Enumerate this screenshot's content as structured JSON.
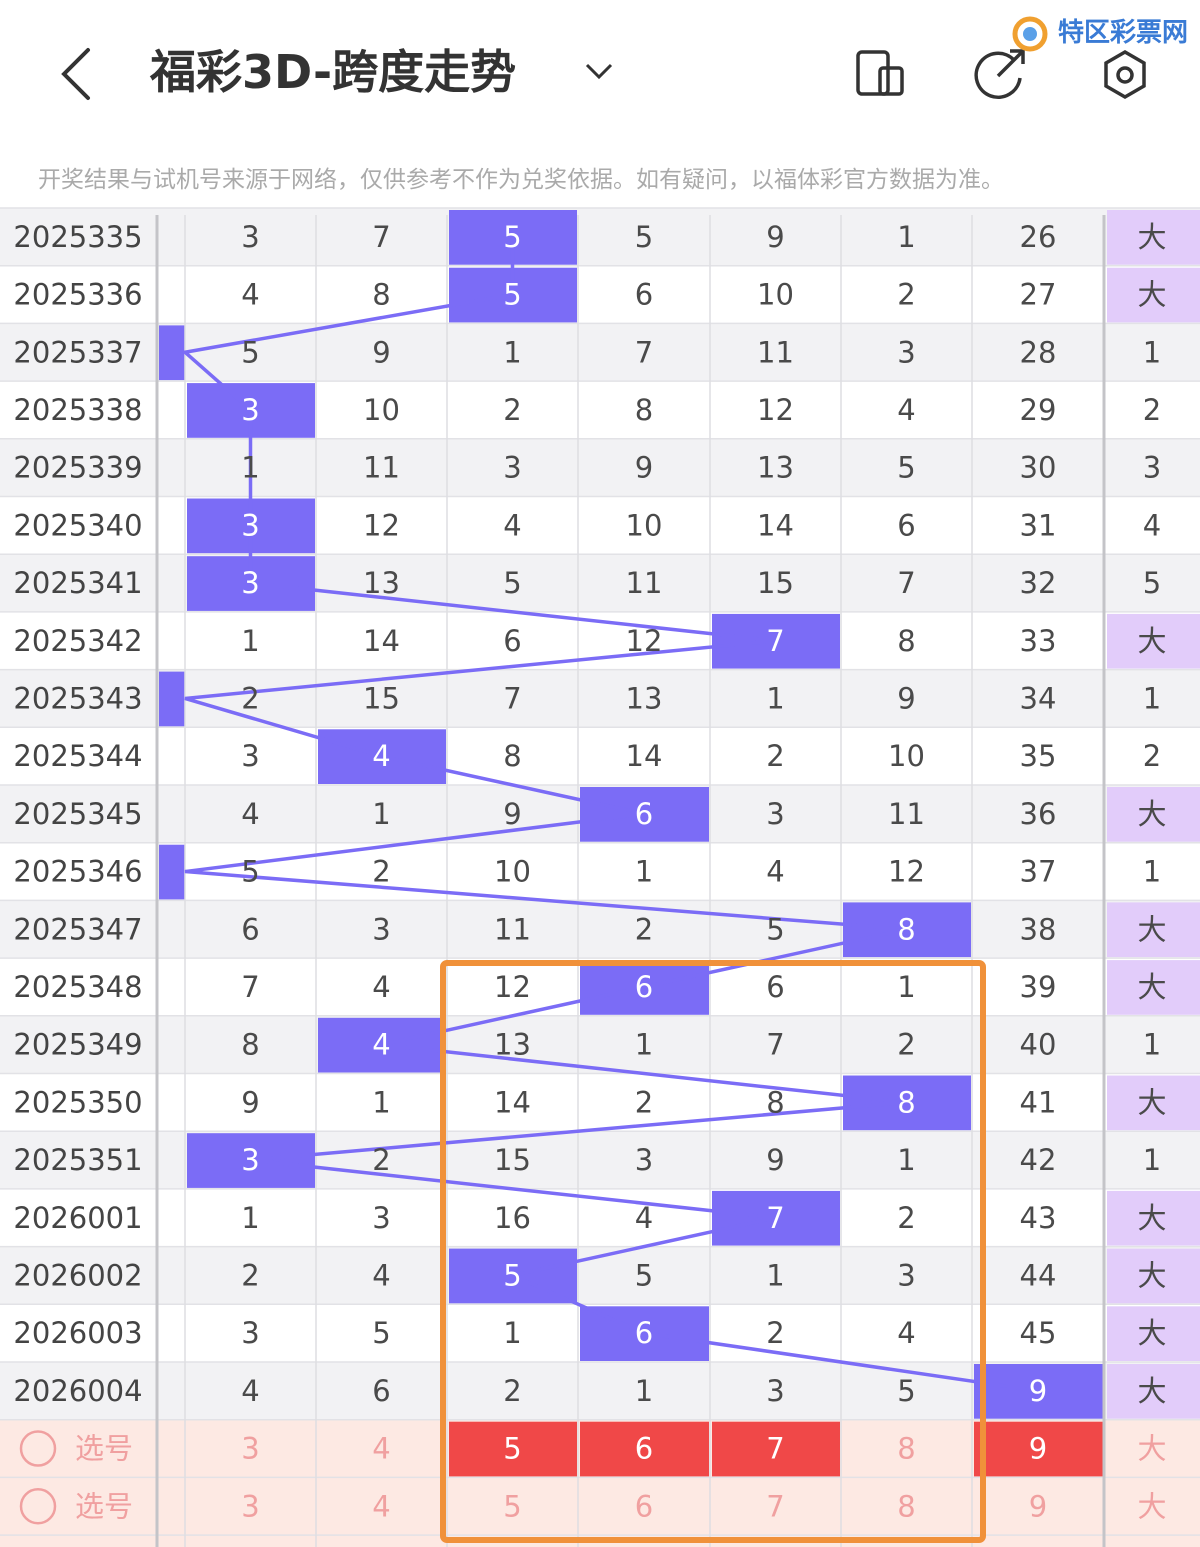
{
  "header": {
    "title": "福彩3D-跨度走势",
    "watermark": "特区彩票网"
  },
  "notice": "开奖结果与试机号来源于网络，仅供参考不作为兑奖依据。如有疑问，以福体彩官方数据为准。",
  "table": {
    "rows": [
      {
        "period": "2025335",
        "hit": 3,
        "cells": [
          3,
          7,
          5,
          5,
          9,
          1,
          26,
          "大"
        ]
      },
      {
        "period": "2025336",
        "hit": 3,
        "cells": [
          4,
          8,
          5,
          6,
          10,
          2,
          27,
          "大"
        ]
      },
      {
        "period": "2025337",
        "hit": 0,
        "cells": [
          5,
          9,
          1,
          7,
          11,
          3,
          28,
          1
        ]
      },
      {
        "period": "2025338",
        "hit": 1,
        "cells": [
          3,
          10,
          2,
          8,
          12,
          4,
          29,
          2
        ]
      },
      {
        "period": "2025339",
        "hit": null,
        "cells": [
          1,
          11,
          3,
          9,
          13,
          5,
          30,
          3
        ]
      },
      {
        "period": "2025340",
        "hit": 1,
        "cells": [
          3,
          12,
          4,
          10,
          14,
          6,
          31,
          4
        ]
      },
      {
        "period": "2025341",
        "hit": 1,
        "cells": [
          3,
          13,
          5,
          11,
          15,
          7,
          32,
          5
        ]
      },
      {
        "period": "2025342",
        "hit": 5,
        "cells": [
          1,
          14,
          6,
          12,
          7,
          8,
          33,
          "大"
        ]
      },
      {
        "period": "2025343",
        "hit": 0,
        "cells": [
          2,
          15,
          7,
          13,
          1,
          9,
          34,
          1
        ]
      },
      {
        "period": "2025344",
        "hit": 2,
        "cells": [
          3,
          4,
          8,
          14,
          2,
          10,
          35,
          2
        ]
      },
      {
        "period": "2025345",
        "hit": 4,
        "cells": [
          4,
          1,
          9,
          6,
          3,
          11,
          36,
          "大"
        ]
      },
      {
        "period": "2025346",
        "hit": 0,
        "cells": [
          5,
          2,
          10,
          1,
          4,
          12,
          37,
          1
        ]
      },
      {
        "period": "2025347",
        "hit": 6,
        "cells": [
          6,
          3,
          11,
          2,
          5,
          8,
          38,
          "大"
        ]
      },
      {
        "period": "2025348",
        "hit": 4,
        "cells": [
          7,
          4,
          12,
          6,
          6,
          1,
          39,
          "大"
        ]
      },
      {
        "period": "2025349",
        "hit": 2,
        "cells": [
          8,
          4,
          13,
          1,
          7,
          2,
          40,
          1
        ]
      },
      {
        "period": "2025350",
        "hit": 6,
        "cells": [
          9,
          1,
          14,
          2,
          8,
          8,
          41,
          "大"
        ]
      },
      {
        "period": "2025351",
        "hit": 1,
        "cells": [
          3,
          2,
          15,
          3,
          9,
          1,
          42,
          1
        ]
      },
      {
        "period": "2026001",
        "hit": 5,
        "cells": [
          1,
          3,
          16,
          4,
          7,
          2,
          43,
          "大"
        ]
      },
      {
        "period": "2026002",
        "hit": 3,
        "cells": [
          2,
          4,
          5,
          5,
          1,
          3,
          44,
          "大"
        ]
      },
      {
        "period": "2026003",
        "hit": 4,
        "cells": [
          3,
          5,
          1,
          6,
          2,
          4,
          45,
          "大"
        ]
      },
      {
        "period": "2026004",
        "hit": 7,
        "cells": [
          4,
          6,
          2,
          1,
          3,
          5,
          9,
          "大"
        ]
      }
    ]
  },
  "selection": [
    {
      "label": "选号",
      "values": [
        3,
        4,
        5,
        6,
        7,
        8,
        9,
        "大"
      ],
      "picked": [
        2,
        3,
        4,
        6
      ]
    },
    {
      "label": "选号",
      "values": [
        3,
        4,
        5,
        6,
        7,
        8,
        9,
        "大"
      ],
      "picked": []
    }
  ]
}
